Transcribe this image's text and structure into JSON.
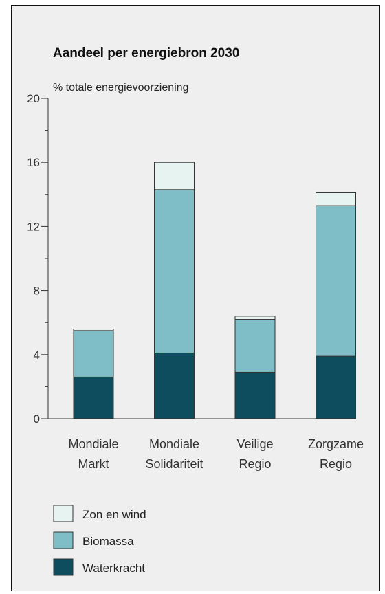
{
  "chart_data": {
    "type": "bar",
    "stacked": true,
    "title": "Aandeel per energiebron 2030",
    "ylabel": "% totale energievoorziening",
    "xlabel": "",
    "ylim": [
      0,
      20
    ],
    "yticks": [
      0,
      4,
      8,
      12,
      16,
      20
    ],
    "grid": false,
    "legend_position": "bottom-left",
    "categories": [
      [
        "Mondiale",
        "Markt"
      ],
      [
        "Mondiale",
        "Solidariteit"
      ],
      [
        "Veilige",
        "Regio"
      ],
      [
        "Zorgzame",
        "Regio"
      ]
    ],
    "series": [
      {
        "name": "Waterkracht",
        "color": "#0d4d5e",
        "values": [
          2.6,
          4.1,
          2.9,
          3.9
        ]
      },
      {
        "name": "Biomassa",
        "color": "#7fbec6",
        "values": [
          2.9,
          10.2,
          3.3,
          9.4
        ]
      },
      {
        "name": "Zon en wind",
        "color": "#e6f3f1",
        "values": [
          0.1,
          1.7,
          0.2,
          0.8
        ]
      }
    ],
    "legend_order": [
      "Zon en wind",
      "Biomassa",
      "Waterkracht"
    ]
  }
}
